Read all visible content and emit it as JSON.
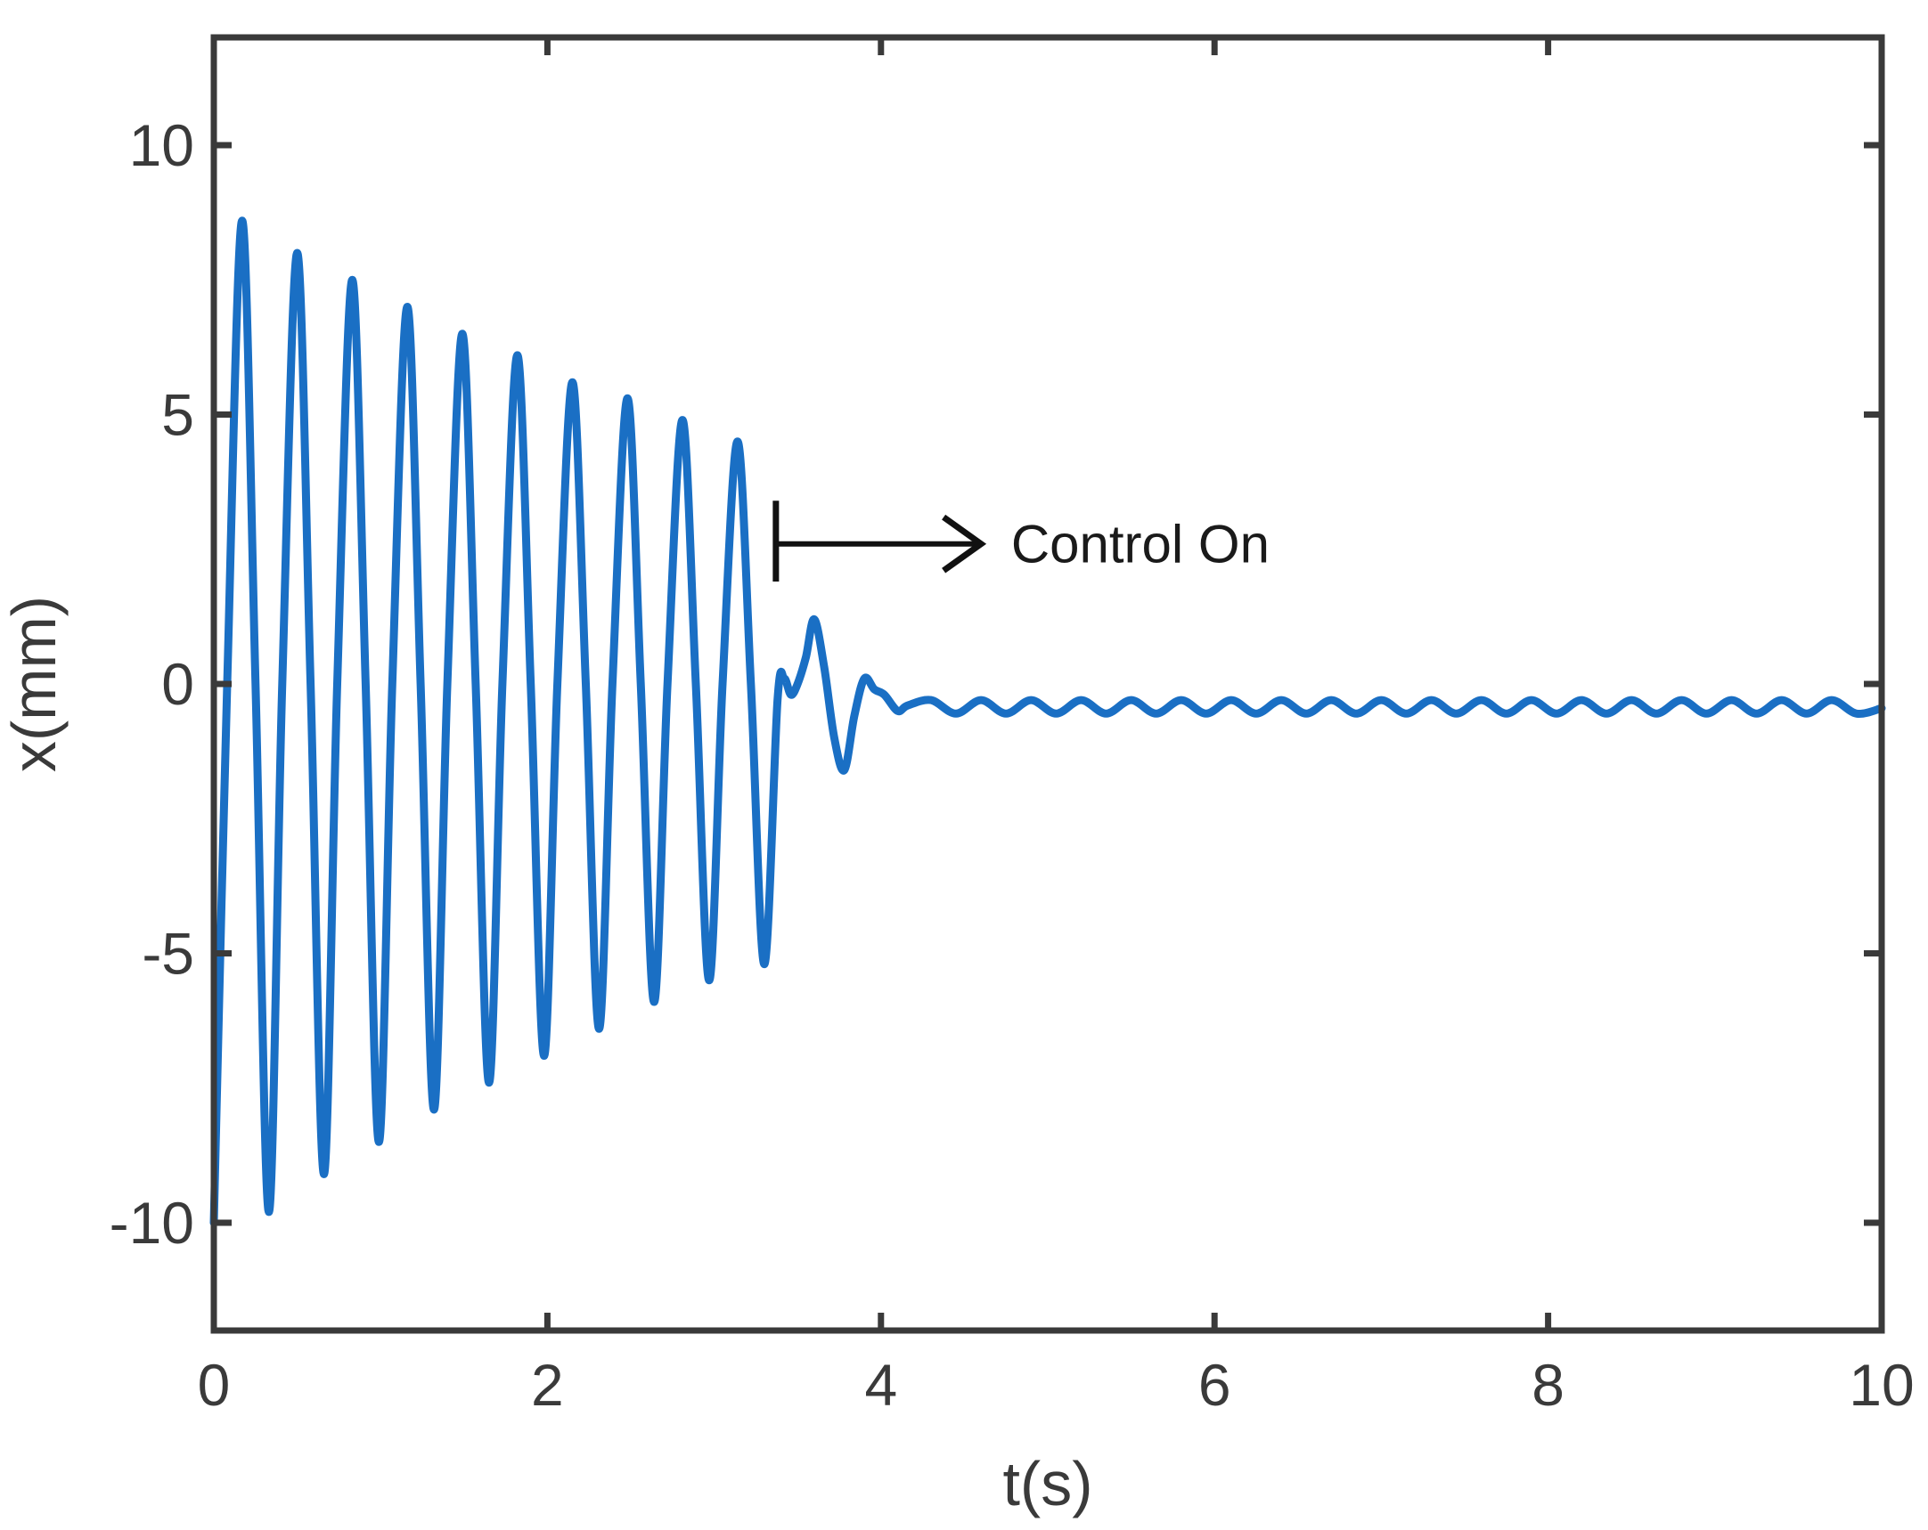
{
  "chart_data": {
    "type": "line",
    "title": "",
    "xlabel": "t(s)",
    "ylabel": "x(mm)",
    "xlim": [
      0,
      10
    ],
    "ylim": [
      -12,
      12
    ],
    "x_ticks": [
      0,
      2,
      4,
      6,
      8,
      10
    ],
    "y_ticks": [
      -10,
      -5,
      0,
      5,
      10
    ],
    "x_tick_labels": [
      "0",
      "2",
      "4",
      "6",
      "8",
      "10"
    ],
    "y_tick_labels": [
      "-10",
      "-5",
      "0",
      "5",
      "10"
    ],
    "grid": false,
    "legend": "none",
    "line_color": "#1a6fc4",
    "axis_color": "#3a3a3a",
    "series": [
      {
        "x": [
          0,
          0.08,
          0.17,
          0.25,
          0.33,
          0.41,
          0.5,
          0.58,
          0.66,
          0.74,
          0.83,
          0.91,
          0.99,
          1.07,
          1.16,
          1.24,
          1.32,
          1.4,
          1.49,
          1.57,
          1.65,
          1.73,
          1.82,
          1.9,
          1.98,
          2.06,
          2.15,
          2.23,
          2.31,
          2.39,
          2.48,
          2.56,
          2.64,
          2.72,
          2.81,
          2.89,
          2.97,
          3.05,
          3.14,
          3.22,
          3.3,
          3.38,
          3.42,
          3.46,
          3.5,
          3.55,
          3.6,
          3.66,
          3.72,
          3.78,
          3.84,
          3.9,
          3.96,
          4.02,
          4.1,
          4.16,
          4.3,
          4.45,
          4.6,
          4.75,
          4.9,
          5.05,
          5.2,
          5.35,
          5.5,
          5.65,
          5.8,
          5.95,
          6.1,
          6.25,
          6.4,
          6.55,
          6.7,
          6.85,
          7.0,
          7.15,
          7.3,
          7.45,
          7.6,
          7.75,
          7.9,
          8.05,
          8.2,
          8.35,
          8.5,
          8.65,
          8.8,
          8.95,
          9.1,
          9.25,
          9.4,
          9.55,
          9.7,
          9.85,
          10.0
        ],
        "y": [
          -10.0,
          0.0,
          8.6,
          0.0,
          -9.8,
          0.0,
          8.0,
          0.0,
          -9.1,
          0.0,
          7.5,
          0.0,
          -8.5,
          0.0,
          7.0,
          0.0,
          -7.9,
          0.0,
          6.5,
          0.0,
          -7.4,
          0.0,
          6.1,
          0.0,
          -6.9,
          0.0,
          5.6,
          0.0,
          -6.4,
          0.0,
          5.3,
          0.0,
          -5.9,
          0.0,
          4.9,
          0.0,
          -5.5,
          0.0,
          4.5,
          0.0,
          -5.2,
          -0.3,
          0.1,
          -0.2,
          0.0,
          0.5,
          1.2,
          0.3,
          -1.0,
          -1.6,
          -0.6,
          0.1,
          -0.1,
          -0.2,
          -0.5,
          -0.4,
          -0.3,
          -0.55,
          -0.3,
          -0.55,
          -0.3,
          -0.55,
          -0.3,
          -0.55,
          -0.3,
          -0.55,
          -0.3,
          -0.55,
          -0.3,
          -0.55,
          -0.3,
          -0.55,
          -0.3,
          -0.55,
          -0.3,
          -0.55,
          -0.3,
          -0.55,
          -0.3,
          -0.55,
          -0.3,
          -0.55,
          -0.3,
          -0.55,
          -0.3,
          -0.55,
          -0.3,
          -0.55,
          -0.3,
          -0.55,
          -0.3,
          -0.55,
          -0.3,
          -0.55,
          -0.45
        ]
      }
    ],
    "annotations": [
      {
        "text": "Control On",
        "x": 4.78,
        "y": 2.6,
        "arrow_from": [
          3.37,
          2.6
        ],
        "arrow_to": [
          4.6,
          2.6
        ],
        "marker_ylim": [
          1.9,
          3.4
        ]
      }
    ]
  }
}
